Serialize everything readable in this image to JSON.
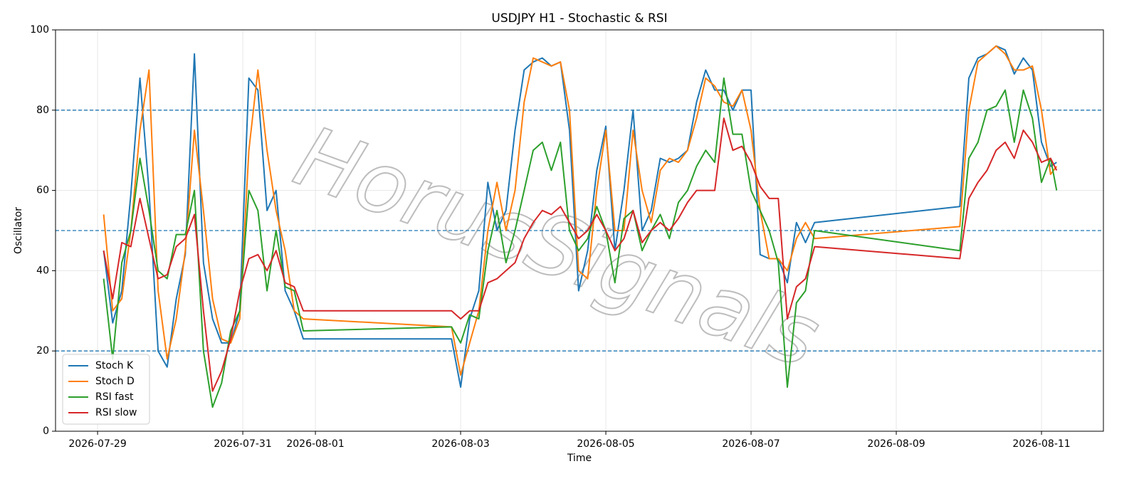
{
  "chart_data": {
    "type": "line",
    "title": "USDJPY H1 - Stochastic & RSI",
    "xlabel": "Time",
    "ylabel": "Oscillator",
    "watermark": "HorusSignals",
    "x": [
      "2026-07-29T02:00",
      "2026-07-29T05:00",
      "2026-07-29T08:00",
      "2026-07-29T11:00",
      "2026-07-29T14:00",
      "2026-07-29T17:00",
      "2026-07-29T20:00",
      "2026-07-29T23:00",
      "2026-07-30T02:00",
      "2026-07-30T05:00",
      "2026-07-30T08:00",
      "2026-07-30T11:00",
      "2026-07-30T14:00",
      "2026-07-30T17:00",
      "2026-07-30T20:00",
      "2026-07-30T23:00",
      "2026-07-31T02:00",
      "2026-07-31T05:00",
      "2026-07-31T08:00",
      "2026-07-31T11:00",
      "2026-07-31T14:00",
      "2026-07-31T17:00",
      "2026-07-31T20:00",
      "2026-08-02T21:00",
      "2026-08-03T00:00",
      "2026-08-03T03:00",
      "2026-08-03T06:00",
      "2026-08-03T09:00",
      "2026-08-03T12:00",
      "2026-08-03T15:00",
      "2026-08-03T18:00",
      "2026-08-03T21:00",
      "2026-08-04T00:00",
      "2026-08-04T03:00",
      "2026-08-04T06:00",
      "2026-08-04T09:00",
      "2026-08-04T12:00",
      "2026-08-04T15:00",
      "2026-08-04T18:00",
      "2026-08-04T21:00",
      "2026-08-05T00:00",
      "2026-08-05T03:00",
      "2026-08-05T06:00",
      "2026-08-05T09:00",
      "2026-08-05T12:00",
      "2026-08-05T15:00",
      "2026-08-05T18:00",
      "2026-08-05T21:00",
      "2026-08-06T00:00",
      "2026-08-06T03:00",
      "2026-08-06T06:00",
      "2026-08-06T09:00",
      "2026-08-06T12:00",
      "2026-08-06T15:00",
      "2026-08-06T18:00",
      "2026-08-06T21:00",
      "2026-08-07T00:00",
      "2026-08-07T03:00",
      "2026-08-07T06:00",
      "2026-08-07T09:00",
      "2026-08-07T12:00",
      "2026-08-07T15:00",
      "2026-08-07T18:00",
      "2026-08-07T21:00",
      "2026-08-09T21:00",
      "2026-08-10T00:00",
      "2026-08-10T03:00",
      "2026-08-10T06:00",
      "2026-08-10T09:00",
      "2026-08-10T12:00",
      "2026-08-10T15:00",
      "2026-08-10T18:00",
      "2026-08-10T21:00",
      "2026-08-11T00:00",
      "2026-08-11T03:00",
      "2026-08-11T05:00"
    ],
    "series": [
      {
        "name": "Stoch K",
        "color": "#1f77b4",
        "values": [
          45,
          27,
          35,
          59,
          88,
          60,
          20,
          16,
          33,
          44,
          94,
          42,
          28,
          22,
          22,
          30,
          88,
          85,
          55,
          60,
          35,
          30,
          23,
          23,
          11,
          28,
          35,
          62,
          50,
          55,
          75,
          90,
          92,
          93,
          91,
          92,
          75,
          35,
          45,
          65,
          76,
          45,
          60,
          80,
          50,
          55,
          68,
          67,
          68,
          70,
          82,
          90,
          85,
          85,
          80,
          85,
          85,
          44,
          43,
          43,
          37,
          52,
          47,
          52,
          56,
          88,
          93,
          94,
          96,
          95,
          89,
          93,
          90,
          72,
          66,
          67
        ]
      },
      {
        "name": "Stoch D",
        "color": "#ff7f0e",
        "values": [
          54,
          30,
          33,
          50,
          75,
          90,
          35,
          18,
          28,
          45,
          75,
          55,
          33,
          23,
          22,
          28,
          70,
          90,
          70,
          55,
          45,
          30,
          28,
          26,
          14,
          22,
          30,
          50,
          62,
          50,
          60,
          82,
          93,
          92,
          91,
          92,
          80,
          40,
          38,
          60,
          75,
          50,
          50,
          75,
          60,
          52,
          65,
          68,
          67,
          70,
          78,
          88,
          86,
          82,
          81,
          85,
          75,
          55,
          43,
          43,
          40,
          48,
          52,
          48,
          51,
          80,
          92,
          94,
          96,
          94,
          90,
          90,
          91,
          80,
          64,
          66
        ]
      },
      {
        "name": "RSI fast",
        "color": "#2ca02c",
        "values": [
          38,
          18,
          42,
          50,
          68,
          55,
          40,
          38,
          49,
          49,
          60,
          20,
          6,
          12,
          25,
          30,
          60,
          55,
          35,
          50,
          36,
          35,
          25,
          26,
          22,
          29,
          28,
          45,
          55,
          42,
          50,
          60,
          70,
          72,
          65,
          72,
          50,
          45,
          48,
          56,
          50,
          37,
          53,
          55,
          45,
          50,
          54,
          48,
          57,
          60,
          66,
          70,
          67,
          88,
          74,
          74,
          60,
          55,
          50,
          42,
          11,
          32,
          35,
          50,
          45,
          68,
          72,
          80,
          81,
          85,
          72,
          85,
          78,
          62,
          68,
          60
        ]
      },
      {
        "name": "RSI slow",
        "color": "#d62728",
        "values": [
          45,
          33,
          47,
          46,
          58,
          48,
          38,
          39,
          46,
          48,
          54,
          30,
          10,
          15,
          23,
          35,
          43,
          44,
          40,
          45,
          37,
          36,
          30,
          30,
          28,
          30,
          30,
          37,
          38,
          40,
          42,
          48,
          52,
          55,
          54,
          56,
          52,
          48,
          50,
          54,
          50,
          45,
          48,
          55,
          47,
          50,
          52,
          50,
          53,
          57,
          60,
          60,
          60,
          78,
          70,
          71,
          67,
          61,
          58,
          58,
          28,
          36,
          38,
          46,
          43,
          58,
          62,
          65,
          70,
          72,
          68,
          75,
          72,
          67,
          68,
          65
        ]
      }
    ],
    "xlim": [
      "2026-07-28T10:06",
      "2026-08-11T20:28"
    ],
    "xticks": [
      "2026-07-29",
      "2026-07-31",
      "2026-08-01",
      "2026-08-03",
      "2026-08-05",
      "2026-08-07",
      "2026-08-09",
      "2026-08-11"
    ],
    "ylim": [
      0,
      100
    ],
    "yticks": [
      0,
      20,
      40,
      60,
      80,
      100
    ],
    "levels": [
      20,
      50,
      80
    ],
    "level_color": "#1f77b4",
    "grid": true,
    "legend": "lower left"
  }
}
